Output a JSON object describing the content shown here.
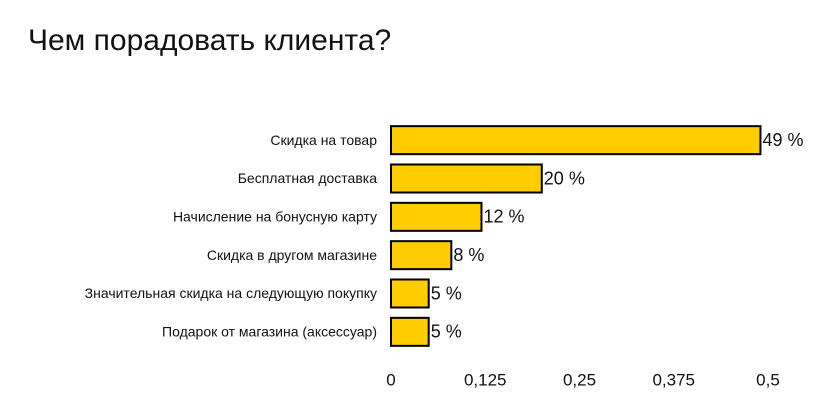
{
  "chart_data": {
    "type": "hbar",
    "title": "Чем порадовать клиента?",
    "categories": [
      "Скидка на товар",
      "Бесплатная доставка",
      "Начисление на бонусную карту",
      "Скидка в другом магазине",
      "Значительная скидка на следующую покупку",
      "Подарок от магазина (аксессуар)"
    ],
    "values": [
      0.49,
      0.2,
      0.12,
      0.08,
      0.05,
      0.05
    ],
    "value_labels": [
      "49 %",
      "20 %",
      "12 %",
      "8 %",
      "5 %",
      "5 %"
    ],
    "color": "#ffcc00",
    "xlim": [
      0,
      0.5
    ],
    "xticks": [
      0,
      {
        "value": 0.125,
        "label": "0,125"
      },
      {
        "value": 0.25,
        "label": "0,25"
      },
      {
        "value": 0.375,
        "label": "0,375"
      },
      {
        "value": 0.5,
        "label": "0,5"
      }
    ],
    "grid": false
  }
}
